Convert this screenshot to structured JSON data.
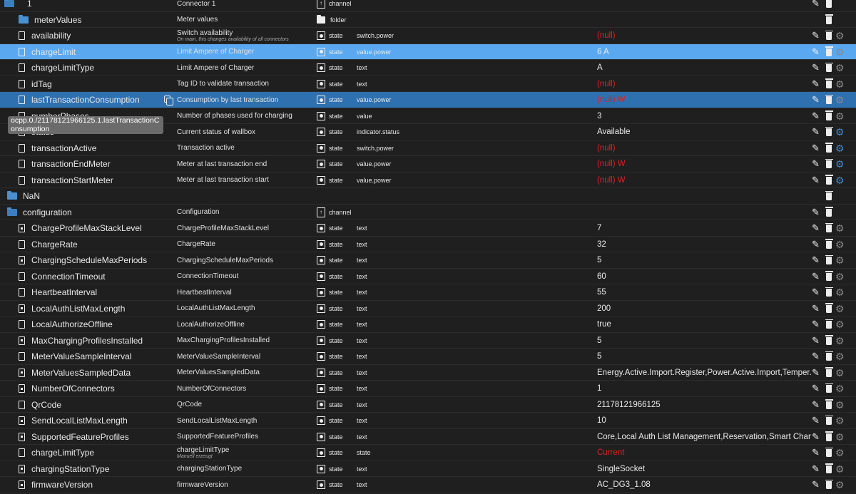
{
  "rows": [
    {
      "id": "1",
      "indent": 6,
      "icon": "folder-open",
      "name": "Connector 1",
      "type": "channel",
      "role": "",
      "value": "",
      "gear": false,
      "edit": true
    },
    {
      "id": "meterValues",
      "indent": 26,
      "icon": "folder",
      "name": "Meter values",
      "type": "folder",
      "role": "",
      "value": "",
      "gear": false,
      "edit": false
    },
    {
      "id": "availability",
      "indent": 26,
      "icon": "file",
      "name": "Switch availability",
      "sub": "On main, this changes availability of all connectors",
      "type": "state",
      "role": "switch.power",
      "value": "(null)",
      "null": true,
      "gear": true
    },
    {
      "id": "chargeLimit",
      "indent": 26,
      "icon": "file",
      "name": "Limit Ampere of Charger",
      "type": "state",
      "role": "value.power",
      "value": "6 A",
      "gear": true,
      "sel": "light"
    },
    {
      "id": "chargeLimitType",
      "indent": 26,
      "icon": "file",
      "name": "Limit Ampere of Charger",
      "type": "state",
      "role": "text",
      "value": "A",
      "gear": true
    },
    {
      "id": "idTag",
      "indent": 26,
      "icon": "file",
      "name": "Tag ID to validate transaction",
      "type": "state",
      "role": "text",
      "value": "(null)",
      "null": true,
      "gear": true
    },
    {
      "id": "lastTransactionConsumption",
      "indent": 26,
      "icon": "file",
      "name": "Consumption by last transaction",
      "type": "state",
      "role": "value.power",
      "value": "(null) W",
      "null": true,
      "gear": true,
      "sel": "dark",
      "copy": true
    },
    {
      "id": "numberPhases",
      "indent": 26,
      "icon": "file",
      "name": "Number of phases used for charging",
      "type": "state",
      "role": "value",
      "value": "3",
      "gear": true
    },
    {
      "id": "status",
      "indent": 26,
      "icon": "file",
      "name": "Current status of wallbox",
      "type": "state",
      "role": "indicator.status",
      "value": "Available",
      "gear": true,
      "gearBlue": true
    },
    {
      "id": "transactionActive",
      "indent": 26,
      "icon": "file",
      "name": "Transaction active",
      "type": "state",
      "role": "switch.power",
      "value": "(null)",
      "null": true,
      "gear": true,
      "gearBlue": true
    },
    {
      "id": "transactionEndMeter",
      "indent": 26,
      "icon": "file",
      "name": "Meter at last transaction end",
      "type": "state",
      "role": "value.power",
      "value": "(null) W",
      "null": true,
      "gear": true,
      "gearBlue": true
    },
    {
      "id": "transactionStartMeter",
      "indent": 26,
      "icon": "file",
      "name": "Meter at last transaction start",
      "type": "state",
      "role": "value.power",
      "value": "(null) W",
      "null": true,
      "gear": true,
      "gearBlue": true
    },
    {
      "id": "NaN",
      "indent": 10,
      "icon": "folder",
      "name": "",
      "type": "",
      "role": "",
      "value": "",
      "gear": false,
      "edit": false
    },
    {
      "id": "configuration",
      "indent": 10,
      "icon": "folder-open",
      "name": "Configuration",
      "type": "channel",
      "role": "",
      "value": "",
      "gear": false
    },
    {
      "id": "ChargeProfileMaxStackLevel",
      "indent": 26,
      "icon": "lock",
      "name": "ChargeProfileMaxStackLevel",
      "type": "state",
      "role": "text",
      "value": "7",
      "gear": true
    },
    {
      "id": "ChargeRate",
      "indent": 26,
      "icon": "file",
      "name": "ChargeRate",
      "type": "state",
      "role": "text",
      "value": "32",
      "gear": true
    },
    {
      "id": "ChargingScheduleMaxPeriods",
      "indent": 26,
      "icon": "lock",
      "name": "ChargingScheduleMaxPeriods",
      "type": "state",
      "role": "text",
      "value": "5",
      "gear": true
    },
    {
      "id": "ConnectionTimeout",
      "indent": 26,
      "icon": "file",
      "name": "ConnectionTimeout",
      "type": "state",
      "role": "text",
      "value": "60",
      "gear": true
    },
    {
      "id": "HeartbeatInterval",
      "indent": 26,
      "icon": "file",
      "name": "HeartbeatInterval",
      "type": "state",
      "role": "text",
      "value": "55",
      "gear": true
    },
    {
      "id": "LocalAuthListMaxLength",
      "indent": 26,
      "icon": "lock",
      "name": "LocalAuthListMaxLength",
      "type": "state",
      "role": "text",
      "value": "200",
      "gear": true
    },
    {
      "id": "LocalAuthorizeOffline",
      "indent": 26,
      "icon": "file",
      "name": "LocalAuthorizeOffline",
      "type": "state",
      "role": "text",
      "value": "true",
      "gear": true
    },
    {
      "id": "MaxChargingProfilesInstalled",
      "indent": 26,
      "icon": "lock",
      "name": "MaxChargingProfilesInstalled",
      "type": "state",
      "role": "text",
      "value": "5",
      "gear": true
    },
    {
      "id": "MeterValueSampleInterval",
      "indent": 26,
      "icon": "file",
      "name": "MeterValueSampleInterval",
      "type": "state",
      "role": "text",
      "value": "5",
      "gear": true
    },
    {
      "id": "MeterValuesSampledData",
      "indent": 26,
      "icon": "lock",
      "name": "MeterValuesSampledData",
      "type": "state",
      "role": "text",
      "value": "Energy.Active.Import.Register,Power.Active.Import,Temper...",
      "gear": true
    },
    {
      "id": "NumberOfConnectors",
      "indent": 26,
      "icon": "lock",
      "name": "NumberOfConnectors",
      "type": "state",
      "role": "text",
      "value": "1",
      "gear": true
    },
    {
      "id": "QrCode",
      "indent": 26,
      "icon": "file",
      "name": "QrCode",
      "type": "state",
      "role": "text",
      "value": "21178121966125",
      "gear": true
    },
    {
      "id": "SendLocalListMaxLength",
      "indent": 26,
      "icon": "lock",
      "name": "SendLocalListMaxLength",
      "type": "state",
      "role": "text",
      "value": "10",
      "gear": true
    },
    {
      "id": "SupportedFeatureProfiles",
      "indent": 26,
      "icon": "lock",
      "name": "SupportedFeatureProfiles",
      "type": "state",
      "role": "text",
      "value": "Core,Local Auth List Management,Reservation,Smart Char...",
      "gear": true
    },
    {
      "id": "chargeLimitType",
      "indent": 26,
      "icon": "file",
      "name": "chargeLimitType",
      "sub": "Manuell erzeugt",
      "subAfter": true,
      "type": "state",
      "role": "state",
      "value": "Current",
      "null": true,
      "gear": true
    },
    {
      "id": "chargingStationType",
      "indent": 26,
      "icon": "lock",
      "name": "chargingStationType",
      "type": "state",
      "role": "text",
      "value": "SingleSocket",
      "gear": true
    },
    {
      "id": "firmwareVersion",
      "indent": 26,
      "icon": "lock",
      "name": "firmwareVersion",
      "type": "state",
      "role": "text",
      "value": "AC_DG3_1.08",
      "gear": true
    }
  ],
  "tooltip": "ocpp.0./21178121966125.1.lastTransactionConsumption"
}
